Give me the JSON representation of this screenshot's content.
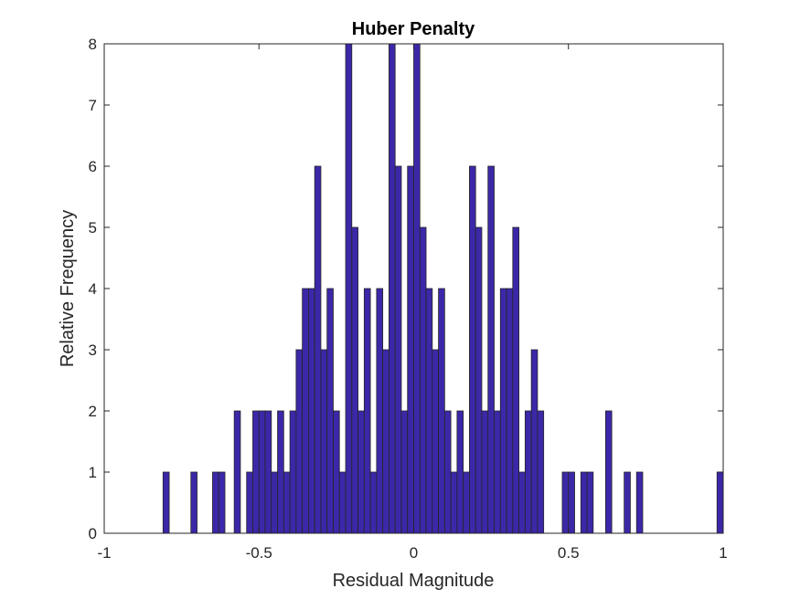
{
  "chart_data": {
    "type": "bar",
    "title": "Huber Penalty",
    "xlabel": "Residual Magnitude",
    "ylabel": "Relative Frequency",
    "xlim": [
      -1,
      1
    ],
    "ylim": [
      0,
      8
    ],
    "xticks": [
      "-1",
      "-0.5",
      "0",
      "0.5",
      "1"
    ],
    "yticks": [
      "0",
      "1",
      "2",
      "3",
      "4",
      "5",
      "6",
      "7",
      "8"
    ],
    "bar_color": "#3b28a8",
    "edge_color": "#262626",
    "grid": false,
    "bin_width": 0.02,
    "bins": [
      {
        "x": -0.8,
        "count": 1
      },
      {
        "x": -0.71,
        "count": 1
      },
      {
        "x": -0.64,
        "count": 1
      },
      {
        "x": -0.62,
        "count": 1
      },
      {
        "x": -0.57,
        "count": 2
      },
      {
        "x": -0.53,
        "count": 1
      },
      {
        "x": -0.51,
        "count": 2
      },
      {
        "x": -0.49,
        "count": 2
      },
      {
        "x": -0.47,
        "count": 2
      },
      {
        "x": -0.45,
        "count": 1
      },
      {
        "x": -0.43,
        "count": 2
      },
      {
        "x": -0.41,
        "count": 1
      },
      {
        "x": -0.39,
        "count": 2
      },
      {
        "x": -0.37,
        "count": 3
      },
      {
        "x": -0.35,
        "count": 4
      },
      {
        "x": -0.33,
        "count": 4
      },
      {
        "x": -0.31,
        "count": 6
      },
      {
        "x": -0.29,
        "count": 3
      },
      {
        "x": -0.27,
        "count": 4
      },
      {
        "x": -0.25,
        "count": 2
      },
      {
        "x": -0.23,
        "count": 1
      },
      {
        "x": -0.21,
        "count": 8
      },
      {
        "x": -0.19,
        "count": 5
      },
      {
        "x": -0.17,
        "count": 2
      },
      {
        "x": -0.15,
        "count": 4
      },
      {
        "x": -0.13,
        "count": 1
      },
      {
        "x": -0.11,
        "count": 4
      },
      {
        "x": -0.09,
        "count": 3
      },
      {
        "x": -0.07,
        "count": 8
      },
      {
        "x": -0.05,
        "count": 6
      },
      {
        "x": -0.03,
        "count": 2
      },
      {
        "x": -0.01,
        "count": 6
      },
      {
        "x": 0.01,
        "count": 8
      },
      {
        "x": 0.03,
        "count": 5
      },
      {
        "x": 0.05,
        "count": 4
      },
      {
        "x": 0.07,
        "count": 3
      },
      {
        "x": 0.09,
        "count": 4
      },
      {
        "x": 0.11,
        "count": 2
      },
      {
        "x": 0.13,
        "count": 1
      },
      {
        "x": 0.15,
        "count": 2
      },
      {
        "x": 0.17,
        "count": 1
      },
      {
        "x": 0.19,
        "count": 6
      },
      {
        "x": 0.21,
        "count": 5
      },
      {
        "x": 0.23,
        "count": 2
      },
      {
        "x": 0.25,
        "count": 6
      },
      {
        "x": 0.27,
        "count": 2
      },
      {
        "x": 0.29,
        "count": 4
      },
      {
        "x": 0.31,
        "count": 4
      },
      {
        "x": 0.33,
        "count": 5
      },
      {
        "x": 0.35,
        "count": 1
      },
      {
        "x": 0.37,
        "count": 2
      },
      {
        "x": 0.39,
        "count": 3
      },
      {
        "x": 0.41,
        "count": 2
      },
      {
        "x": 0.49,
        "count": 1
      },
      {
        "x": 0.51,
        "count": 1
      },
      {
        "x": 0.55,
        "count": 1
      },
      {
        "x": 0.57,
        "count": 1
      },
      {
        "x": 0.63,
        "count": 2
      },
      {
        "x": 0.69,
        "count": 1
      },
      {
        "x": 0.73,
        "count": 1
      },
      {
        "x": 0.99,
        "count": 1
      }
    ]
  }
}
